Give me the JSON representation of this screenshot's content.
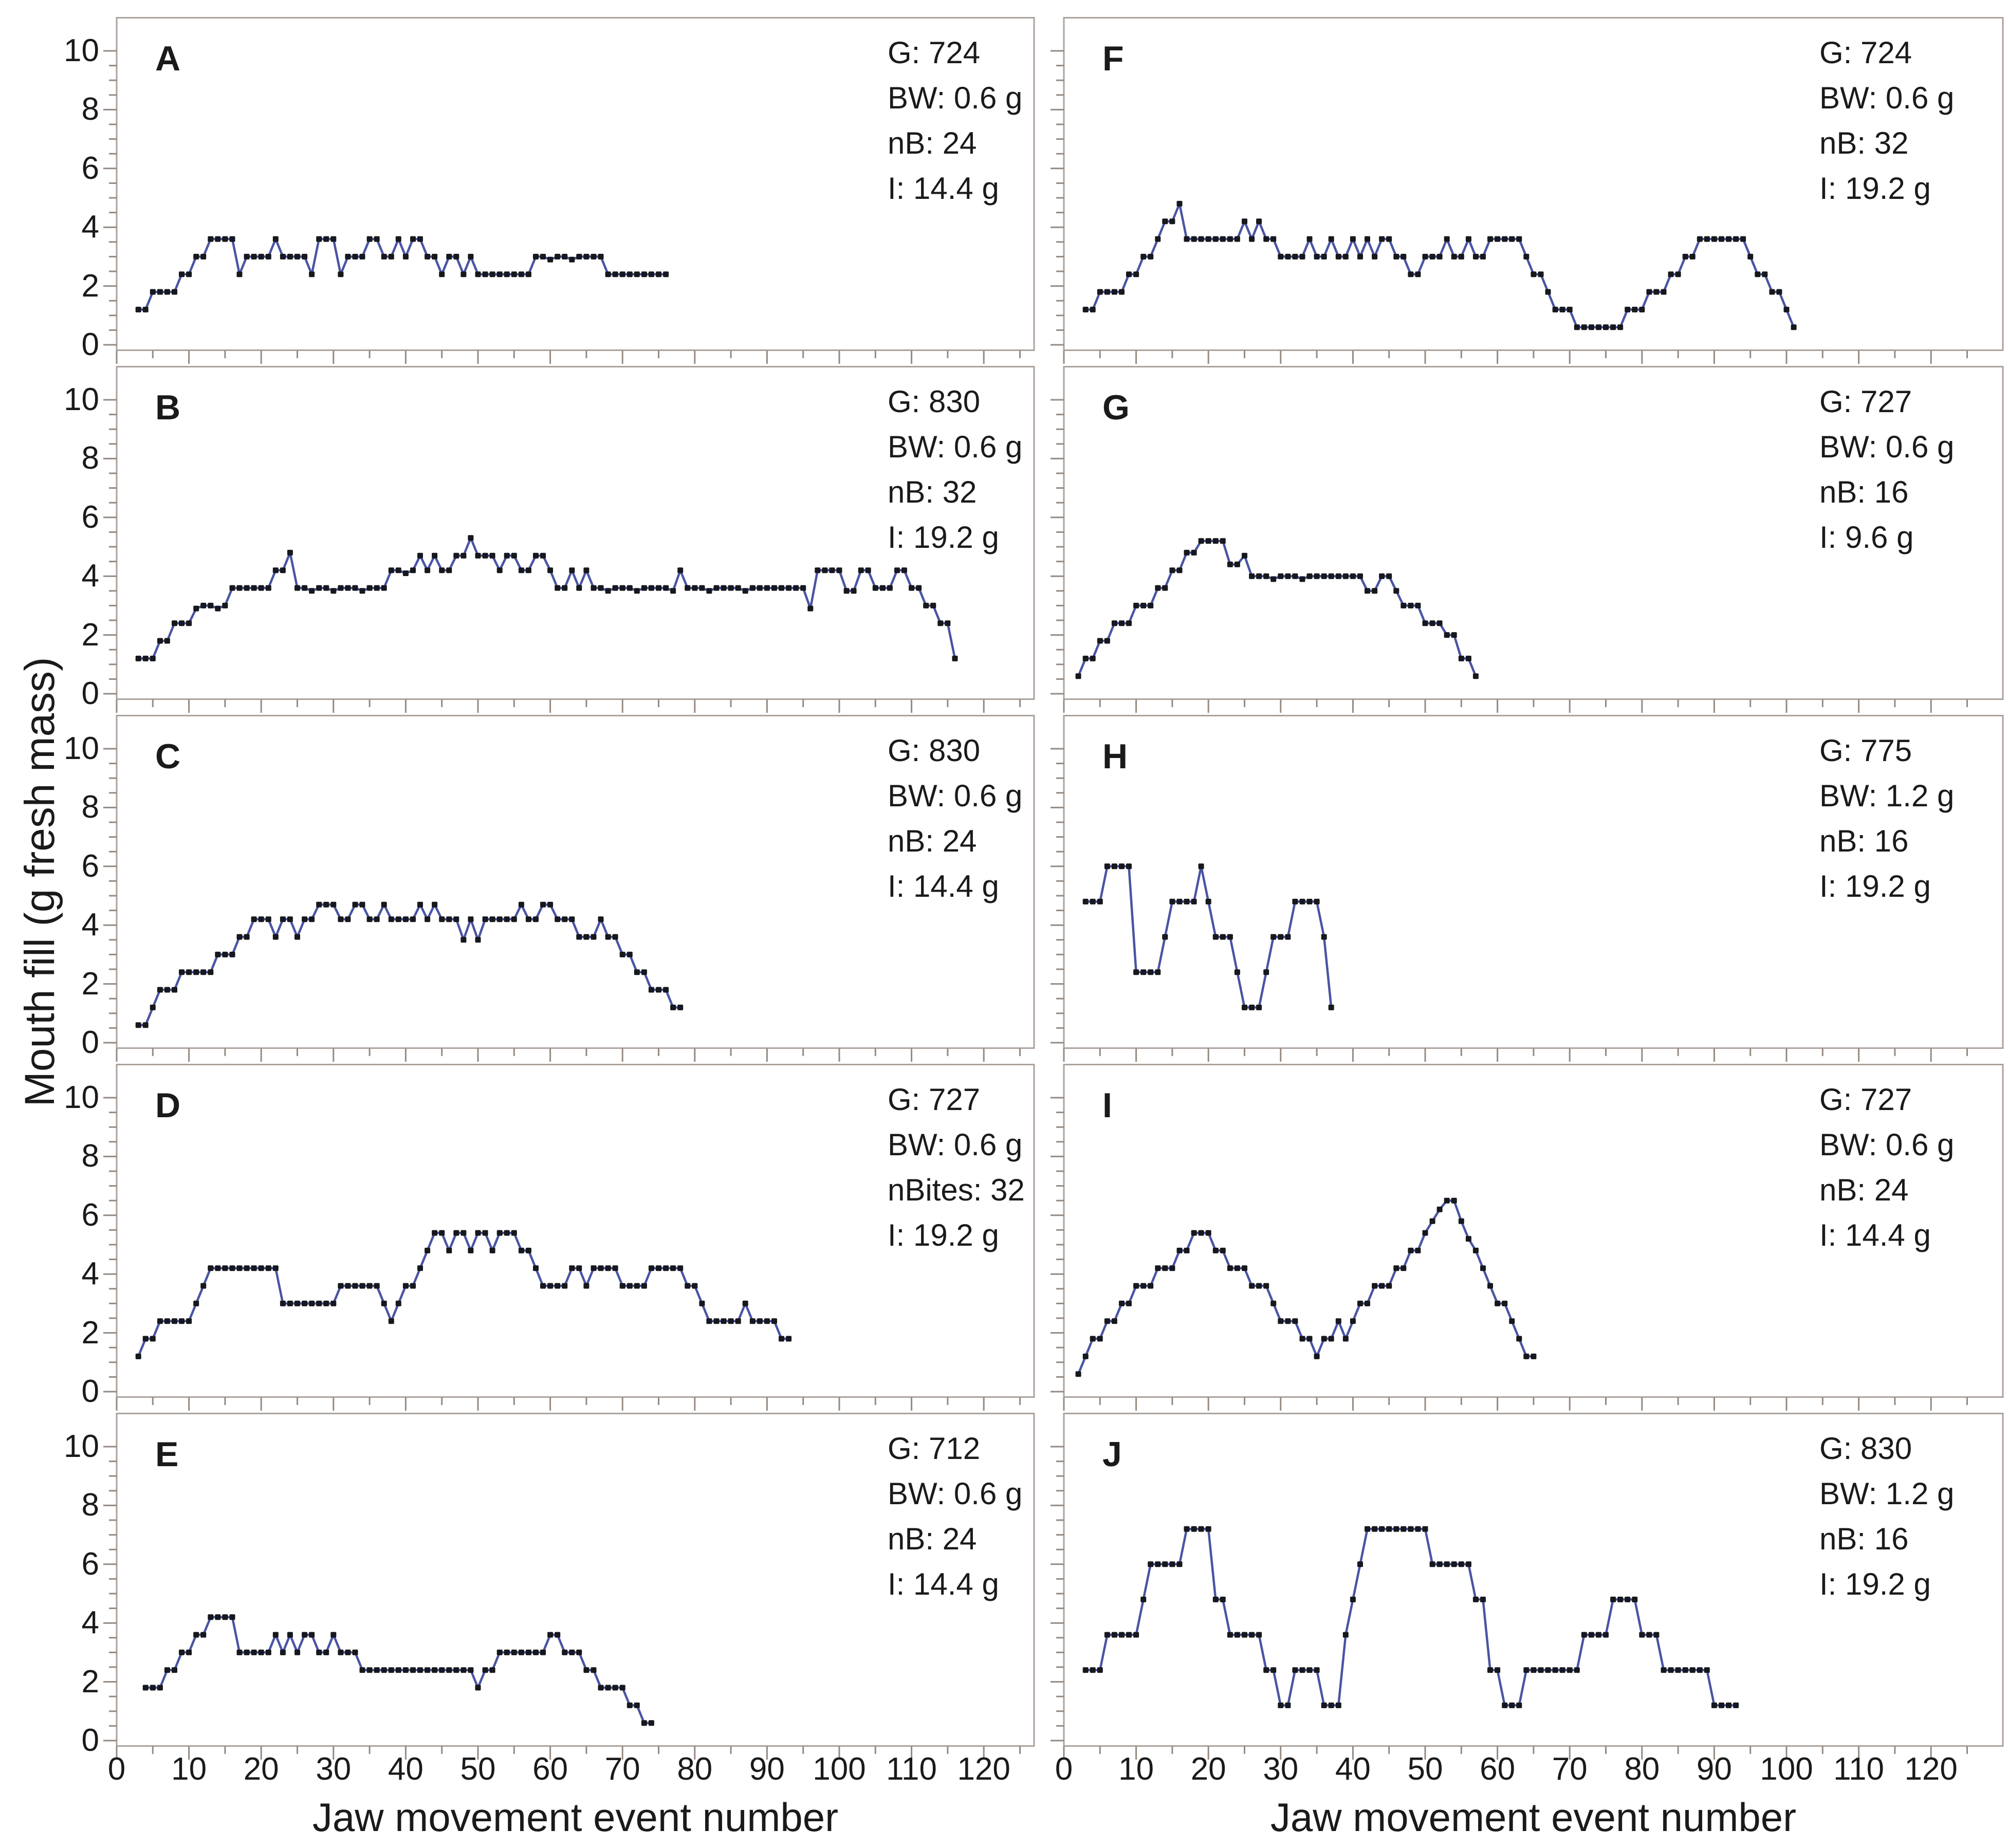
{
  "figure": {
    "x_axis_title": "Jaw movement event number",
    "y_axis_title": "Mouth fill (g fresh mass)"
  },
  "colors": {
    "line": "#4954a3",
    "marker": "#17181d",
    "frame": "#aca29c",
    "tick": "#948a82",
    "text": "#1a1a1a"
  },
  "chart_data": {
    "type": "line",
    "xlabel": "Jaw movement event number",
    "ylabel": "Mouth fill (g fresh mass)",
    "xlim": [
      0,
      130
    ],
    "ylim": [
      0,
      10
    ],
    "grid": false,
    "legend": null,
    "x_tick_values": [
      0,
      10,
      20,
      30,
      40,
      50,
      60,
      70,
      80,
      90,
      100,
      110,
      120
    ],
    "x_tick_labels": [
      "0",
      "10",
      "20",
      "30",
      "40",
      "50",
      "60",
      "70",
      "80",
      "90",
      "100",
      "110",
      "120"
    ],
    "x_minor_step": 5,
    "y_tick_values": [
      0,
      2,
      4,
      6,
      8,
      10
    ],
    "y_tick_labels": [
      "0",
      "2",
      "4",
      "6",
      "8",
      "10"
    ],
    "y_minor_step": 0.5,
    "panels": [
      {
        "letter": "A",
        "annotation": [
          "G: 724",
          "BW: 0.6 g",
          "nB: 24",
          "I: 14.4 g"
        ],
        "x_start": 3,
        "values": [
          1.2,
          1.2,
          1.8,
          1.8,
          1.8,
          1.8,
          2.4,
          2.4,
          3.0,
          3.0,
          3.6,
          3.6,
          3.6,
          3.6,
          2.4,
          3.0,
          3.0,
          3.0,
          3.0,
          3.6,
          3.0,
          3.0,
          3.0,
          3.0,
          2.4,
          3.6,
          3.6,
          3.6,
          2.4,
          3.0,
          3.0,
          3.0,
          3.6,
          3.6,
          3.0,
          3.0,
          3.6,
          3.0,
          3.6,
          3.6,
          3.0,
          3.0,
          2.4,
          3.0,
          3.0,
          2.4,
          3.0,
          2.4,
          2.4,
          2.4,
          2.4,
          2.4,
          2.4,
          2.4,
          2.4,
          3.0,
          3.0,
          2.9,
          3.0,
          3.0,
          2.9,
          3.0,
          3.0,
          3.0,
          3.0,
          2.4,
          2.4,
          2.4,
          2.4,
          2.4,
          2.4,
          2.4,
          2.4,
          2.4
        ]
      },
      {
        "letter": "B",
        "annotation": [
          "G: 830",
          "BW: 0.6 g",
          "nB: 32",
          "I: 19.2 g"
        ],
        "x_start": 3,
        "values": [
          1.2,
          1.2,
          1.2,
          1.8,
          1.8,
          2.4,
          2.4,
          2.4,
          2.9,
          3.0,
          3.0,
          2.9,
          3.0,
          3.6,
          3.6,
          3.6,
          3.6,
          3.6,
          3.6,
          4.2,
          4.2,
          4.8,
          3.6,
          3.6,
          3.5,
          3.6,
          3.6,
          3.5,
          3.6,
          3.6,
          3.6,
          3.5,
          3.6,
          3.6,
          3.6,
          4.2,
          4.2,
          4.1,
          4.2,
          4.7,
          4.2,
          4.7,
          4.2,
          4.2,
          4.7,
          4.7,
          5.3,
          4.7,
          4.7,
          4.7,
          4.2,
          4.7,
          4.7,
          4.2,
          4.2,
          4.7,
          4.7,
          4.2,
          3.6,
          3.6,
          4.2,
          3.6,
          4.2,
          3.6,
          3.6,
          3.5,
          3.6,
          3.6,
          3.6,
          3.5,
          3.6,
          3.6,
          3.6,
          3.6,
          3.5,
          4.2,
          3.6,
          3.6,
          3.6,
          3.5,
          3.6,
          3.6,
          3.6,
          3.6,
          3.5,
          3.6,
          3.6,
          3.6,
          3.6,
          3.6,
          3.6,
          3.6,
          3.6,
          2.9,
          4.2,
          4.2,
          4.2,
          4.2,
          3.5,
          3.5,
          4.2,
          4.2,
          3.6,
          3.6,
          3.6,
          4.2,
          4.2,
          3.6,
          3.6,
          3.0,
          3.0,
          2.4,
          2.4,
          1.2
        ]
      },
      {
        "letter": "C",
        "annotation": [
          "G: 830",
          "BW: 0.6 g",
          "nB: 24",
          "I: 14.4 g"
        ],
        "x_start": 3,
        "values": [
          0.6,
          0.6,
          1.2,
          1.8,
          1.8,
          1.8,
          2.4,
          2.4,
          2.4,
          2.4,
          2.4,
          3.0,
          3.0,
          3.0,
          3.6,
          3.6,
          4.2,
          4.2,
          4.2,
          3.6,
          4.2,
          4.2,
          3.6,
          4.2,
          4.2,
          4.7,
          4.7,
          4.7,
          4.2,
          4.2,
          4.7,
          4.7,
          4.2,
          4.2,
          4.7,
          4.2,
          4.2,
          4.2,
          4.2,
          4.7,
          4.2,
          4.7,
          4.2,
          4.2,
          4.2,
          3.5,
          4.2,
          3.5,
          4.2,
          4.2,
          4.2,
          4.2,
          4.2,
          4.7,
          4.2,
          4.2,
          4.7,
          4.7,
          4.2,
          4.2,
          4.2,
          3.6,
          3.6,
          3.6,
          4.2,
          3.6,
          3.6,
          3.0,
          3.0,
          2.4,
          2.4,
          1.8,
          1.8,
          1.8,
          1.2,
          1.2
        ]
      },
      {
        "letter": "D",
        "annotation": [
          "G: 727",
          "BW: 0.6 g",
          "nBites: 32",
          "I: 19.2 g"
        ],
        "x_start": 3,
        "values": [
          1.2,
          1.8,
          1.8,
          2.4,
          2.4,
          2.4,
          2.4,
          2.4,
          3.0,
          3.6,
          4.2,
          4.2,
          4.2,
          4.2,
          4.2,
          4.2,
          4.2,
          4.2,
          4.2,
          4.2,
          3.0,
          3.0,
          3.0,
          3.0,
          3.0,
          3.0,
          3.0,
          3.0,
          3.6,
          3.6,
          3.6,
          3.6,
          3.6,
          3.6,
          3.0,
          2.4,
          3.0,
          3.6,
          3.6,
          4.2,
          4.8,
          5.4,
          5.4,
          4.8,
          5.4,
          5.4,
          4.8,
          5.4,
          5.4,
          4.8,
          5.4,
          5.4,
          5.4,
          4.8,
          4.8,
          4.2,
          3.6,
          3.6,
          3.6,
          3.6,
          4.2,
          4.2,
          3.6,
          4.2,
          4.2,
          4.2,
          4.2,
          3.6,
          3.6,
          3.6,
          3.6,
          4.2,
          4.2,
          4.2,
          4.2,
          4.2,
          3.6,
          3.6,
          3.0,
          2.4,
          2.4,
          2.4,
          2.4,
          2.4,
          3.0,
          2.4,
          2.4,
          2.4,
          2.4,
          1.8,
          1.8
        ]
      },
      {
        "letter": "E",
        "annotation": [
          "G: 712",
          "BW: 0.6 g",
          "nB: 24",
          "I: 14.4 g"
        ],
        "x_start": 4,
        "values": [
          1.8,
          1.8,
          1.8,
          2.4,
          2.4,
          3.0,
          3.0,
          3.6,
          3.6,
          4.2,
          4.2,
          4.2,
          4.2,
          3.0,
          3.0,
          3.0,
          3.0,
          3.0,
          3.6,
          3.0,
          3.6,
          3.0,
          3.6,
          3.6,
          3.0,
          3.0,
          3.6,
          3.0,
          3.0,
          3.0,
          2.4,
          2.4,
          2.4,
          2.4,
          2.4,
          2.4,
          2.4,
          2.4,
          2.4,
          2.4,
          2.4,
          2.4,
          2.4,
          2.4,
          2.4,
          2.4,
          1.8,
          2.4,
          2.4,
          3.0,
          3.0,
          3.0,
          3.0,
          3.0,
          3.0,
          3.0,
          3.6,
          3.6,
          3.0,
          3.0,
          3.0,
          2.4,
          2.4,
          1.8,
          1.8,
          1.8,
          1.8,
          1.2,
          1.2,
          0.6,
          0.6
        ]
      },
      {
        "letter": "F",
        "annotation": [
          "G: 724",
          "BW: 0.6 g",
          "nB: 32",
          "I: 19.2 g"
        ],
        "x_start": 3,
        "values": [
          1.2,
          1.2,
          1.8,
          1.8,
          1.8,
          1.8,
          2.4,
          2.4,
          3.0,
          3.0,
          3.6,
          4.2,
          4.2,
          4.8,
          3.6,
          3.6,
          3.6,
          3.6,
          3.6,
          3.6,
          3.6,
          3.6,
          4.2,
          3.6,
          4.2,
          3.6,
          3.6,
          3.0,
          3.0,
          3.0,
          3.0,
          3.6,
          3.0,
          3.0,
          3.6,
          3.0,
          3.0,
          3.6,
          3.0,
          3.6,
          3.0,
          3.6,
          3.6,
          3.0,
          3.0,
          2.4,
          2.4,
          3.0,
          3.0,
          3.0,
          3.6,
          3.0,
          3.0,
          3.6,
          3.0,
          3.0,
          3.6,
          3.6,
          3.6,
          3.6,
          3.6,
          3.0,
          2.4,
          2.4,
          1.8,
          1.2,
          1.2,
          1.2,
          0.6,
          0.6,
          0.6,
          0.6,
          0.6,
          0.6,
          0.6,
          1.2,
          1.2,
          1.2,
          1.8,
          1.8,
          1.8,
          2.4,
          2.4,
          3.0,
          3.0,
          3.6,
          3.6,
          3.6,
          3.6,
          3.6,
          3.6,
          3.6,
          3.0,
          2.4,
          2.4,
          1.8,
          1.8,
          1.2,
          0.6
        ]
      },
      {
        "letter": "G",
        "annotation": [
          "G: 727",
          "BW: 0.6 g",
          "nB: 16",
          "I: 9.6 g"
        ],
        "x_start": 2,
        "values": [
          0.6,
          1.2,
          1.2,
          1.8,
          1.8,
          2.4,
          2.4,
          2.4,
          3.0,
          3.0,
          3.0,
          3.6,
          3.6,
          4.2,
          4.2,
          4.8,
          4.8,
          5.2,
          5.2,
          5.2,
          5.2,
          4.4,
          4.4,
          4.7,
          4.0,
          4.0,
          4.0,
          3.9,
          4.0,
          4.0,
          4.0,
          3.9,
          4.0,
          4.0,
          4.0,
          4.0,
          4.0,
          4.0,
          4.0,
          4.0,
          3.5,
          3.5,
          4.0,
          4.0,
          3.5,
          3.0,
          3.0,
          3.0,
          2.4,
          2.4,
          2.4,
          2.0,
          2.0,
          1.2,
          1.2,
          0.6
        ]
      },
      {
        "letter": "H",
        "annotation": [
          "G: 775",
          "BW: 1.2 g",
          "nB: 16",
          "I: 19.2 g"
        ],
        "x_start": 3,
        "values": [
          4.8,
          4.8,
          4.8,
          6.0,
          6.0,
          6.0,
          6.0,
          2.4,
          2.4,
          2.4,
          2.4,
          3.6,
          4.8,
          4.8,
          4.8,
          4.8,
          6.0,
          4.8,
          3.6,
          3.6,
          3.6,
          2.4,
          1.2,
          1.2,
          1.2,
          2.4,
          3.6,
          3.6,
          3.6,
          4.8,
          4.8,
          4.8,
          4.8,
          3.6,
          1.2
        ]
      },
      {
        "letter": "I",
        "annotation": [
          "G: 727",
          "BW: 0.6 g",
          "nB: 24",
          "I: 14.4 g"
        ],
        "x_start": 2,
        "values": [
          0.6,
          1.2,
          1.8,
          1.8,
          2.4,
          2.4,
          3.0,
          3.0,
          3.6,
          3.6,
          3.6,
          4.2,
          4.2,
          4.2,
          4.8,
          4.8,
          5.4,
          5.4,
          5.4,
          4.8,
          4.8,
          4.2,
          4.2,
          4.2,
          3.6,
          3.6,
          3.6,
          3.0,
          2.4,
          2.4,
          2.4,
          1.8,
          1.8,
          1.2,
          1.8,
          1.8,
          2.4,
          1.8,
          2.4,
          3.0,
          3.0,
          3.6,
          3.6,
          3.6,
          4.2,
          4.2,
          4.8,
          4.8,
          5.4,
          5.8,
          6.2,
          6.5,
          6.5,
          5.8,
          5.2,
          4.8,
          4.2,
          3.6,
          3.0,
          3.0,
          2.4,
          1.8,
          1.2,
          1.2
        ]
      },
      {
        "letter": "J",
        "annotation": [
          "G: 830",
          "BW: 1.2 g",
          "nB: 16",
          "I: 19.2 g"
        ],
        "x_start": 3,
        "values": [
          2.4,
          2.4,
          2.4,
          3.6,
          3.6,
          3.6,
          3.6,
          3.6,
          4.8,
          6.0,
          6.0,
          6.0,
          6.0,
          6.0,
          7.2,
          7.2,
          7.2,
          7.2,
          4.8,
          4.8,
          3.6,
          3.6,
          3.6,
          3.6,
          3.6,
          2.4,
          2.4,
          1.2,
          1.2,
          2.4,
          2.4,
          2.4,
          2.4,
          1.2,
          1.2,
          1.2,
          3.6,
          4.8,
          6.0,
          7.2,
          7.2,
          7.2,
          7.2,
          7.2,
          7.2,
          7.2,
          7.2,
          7.2,
          6.0,
          6.0,
          6.0,
          6.0,
          6.0,
          6.0,
          4.8,
          4.8,
          2.4,
          2.4,
          1.2,
          1.2,
          1.2,
          2.4,
          2.4,
          2.4,
          2.4,
          2.4,
          2.4,
          2.4,
          2.4,
          3.6,
          3.6,
          3.6,
          3.6,
          4.8,
          4.8,
          4.8,
          4.8,
          3.6,
          3.6,
          3.6,
          2.4,
          2.4,
          2.4,
          2.4,
          2.4,
          2.4,
          2.4,
          1.2,
          1.2,
          1.2,
          1.2
        ]
      }
    ]
  }
}
